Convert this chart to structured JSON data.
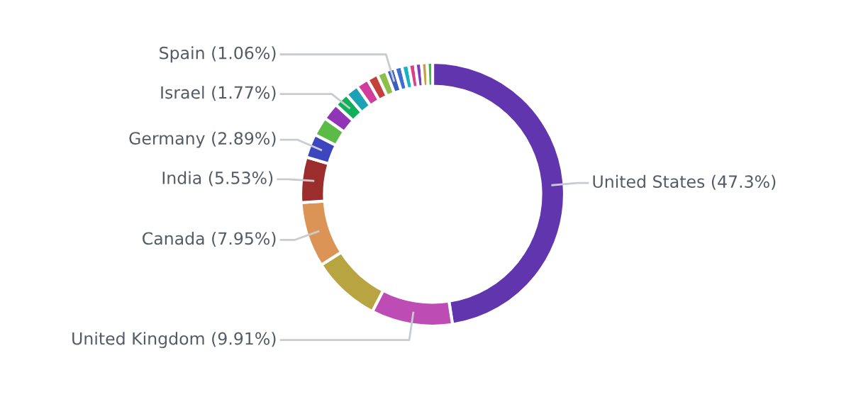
{
  "chart_data": {
    "type": "donut",
    "categories": [
      "United States (47.3%)",
      "United Kingdom (9.91%)",
      null,
      "Canada (7.95%)",
      "India (5.53%)",
      "Germany (2.89%)",
      null,
      null,
      "Israel (1.77%)",
      null,
      null,
      null,
      null,
      "Spain (1.06%)",
      null,
      null,
      null,
      null,
      null,
      null
    ],
    "values": [
      47.3,
      9.91,
      8.39,
      7.95,
      5.53,
      2.89,
      2.3,
      2.1,
      1.77,
      1.6,
      1.5,
      1.3,
      1.15,
      1.06,
      0.9,
      0.85,
      0.8,
      0.75,
      0.7,
      0.65
    ],
    "colors": [
      "#6135ae",
      "#bd4db5",
      "#b8a542",
      "#dc9456",
      "#9b2d2d",
      "#3b46bf",
      "#5cba47",
      "#9034b8",
      "#10b05a",
      "#1ba3b5",
      "#d13d9c",
      "#c4403a",
      "#8cc04a",
      "#3b5fc0",
      "#3c6fd0",
      "#17b3c4",
      "#d9418a",
      "#7c3fc0",
      "#c9a04a",
      "#3cb54a"
    ]
  }
}
